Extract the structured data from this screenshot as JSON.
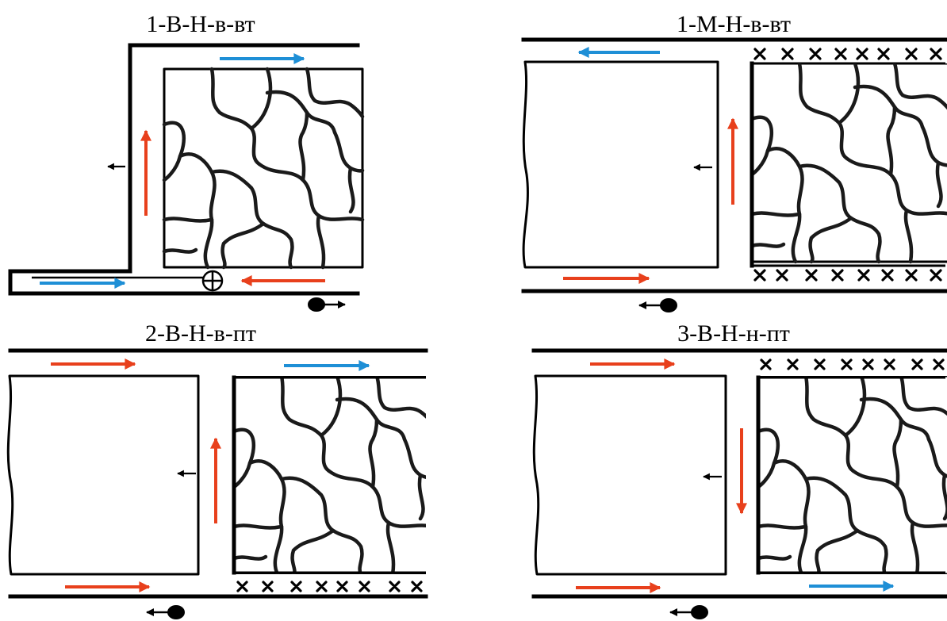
{
  "colors": {
    "hot_flow": "#e8401c",
    "cold_flow": "#1e8fd6",
    "line": "#000000"
  },
  "panels": [
    {
      "id": "p1",
      "label": "1-В-Н-в-вт"
    },
    {
      "id": "p2",
      "label": "1-М-Н-в-вт"
    },
    {
      "id": "p3",
      "label": "2-В-Н-в-пт"
    },
    {
      "id": "p4",
      "label": "3-В-Н-н-пт"
    }
  ],
  "icons": {
    "intersection": "circled-plus-icon",
    "advance": "dot-arrow-icon",
    "cross": "cross-mark-icon"
  }
}
